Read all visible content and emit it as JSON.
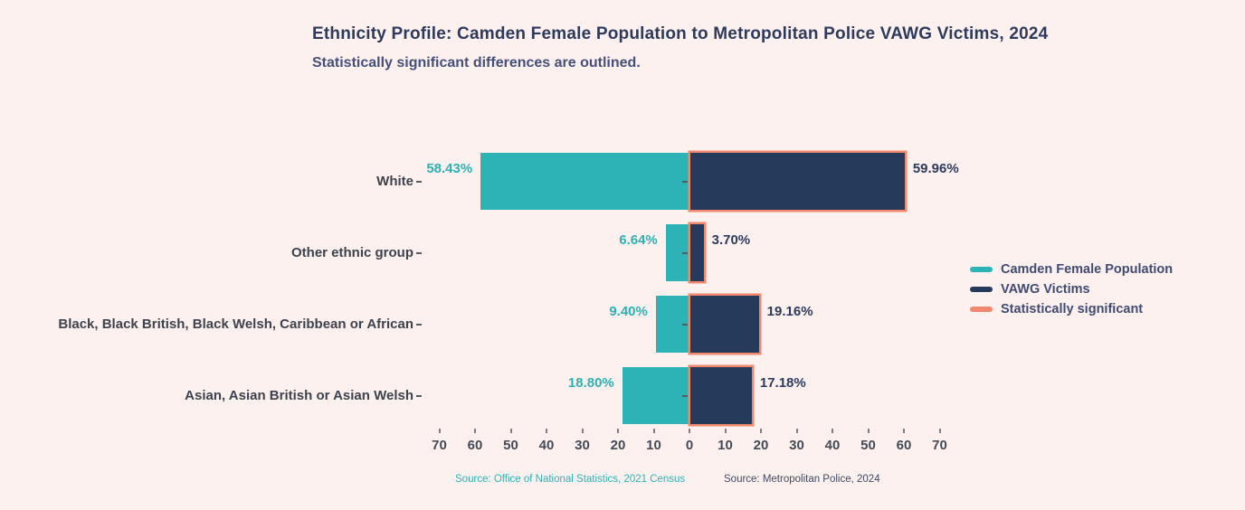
{
  "page": {
    "background_color": "#fdf1f0"
  },
  "chart_data": {
    "type": "bar",
    "variant": "diverging-horizontal-butterfly",
    "title": "Ethnicity Profile: Camden Female Population to Metropolitan Police VAWG Victims, 2024",
    "subtitle": "Statistically significant differences are outlined.",
    "categories": [
      "White",
      "Other ethnic group",
      "Black, Black British, Black Welsh, Caribbean or African",
      "Asian, Asian British or Asian Welsh"
    ],
    "series": [
      {
        "name": "Camden Female Population",
        "side": "left",
        "color": "#2cb3b5",
        "values": [
          58.43,
          6.64,
          9.4,
          18.8
        ],
        "value_labels": [
          "58.43%",
          "6.64%",
          "9.40%",
          "18.80%"
        ],
        "significant": [
          false,
          false,
          false,
          false
        ]
      },
      {
        "name": "VAWG Victims",
        "side": "right",
        "color": "#263a5c",
        "values": [
          59.96,
          3.7,
          19.16,
          17.18
        ],
        "value_labels": [
          "59.96%",
          "3.70%",
          "19.16%",
          "17.18%"
        ],
        "significant": [
          true,
          true,
          true,
          true
        ]
      }
    ],
    "significant_outline_color": "#f1876c",
    "x_axis": {
      "tick_values": [
        -70,
        -60,
        -50,
        -40,
        -30,
        -20,
        -10,
        0,
        10,
        20,
        30,
        40,
        50,
        60,
        70
      ],
      "tick_labels": [
        "70",
        "60",
        "50",
        "40",
        "30",
        "20",
        "10",
        "0",
        "10",
        "20",
        "30",
        "40",
        "50",
        "60",
        "70"
      ],
      "range_abs_max": 70,
      "grid": false
    },
    "legend": {
      "position": "right",
      "entries": [
        {
          "label": "Camden Female Population",
          "color": "#2cb3b5"
        },
        {
          "label": "VAWG Victims",
          "color": "#263a5c"
        },
        {
          "label": "Statistically significant",
          "color": "#f1876c"
        }
      ]
    },
    "sources": [
      {
        "text": "Source: Office of National Statistics, 2021 Census",
        "color": "#2eb2b5"
      },
      {
        "text": "Source: Metropolitan Police, 2024",
        "color": "#3e4a63"
      }
    ]
  }
}
